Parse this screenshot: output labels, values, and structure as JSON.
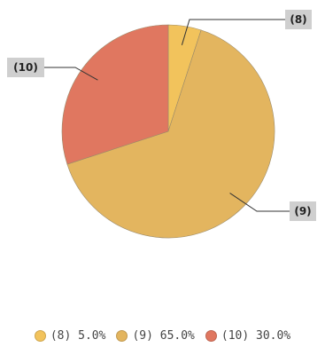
{
  "chart_data": {
    "type": "pie",
    "title": "",
    "slices": [
      {
        "label": "(8)",
        "value": 5.0,
        "legend": "(8) 5.0%",
        "color": "#f2c35c"
      },
      {
        "label": "(9)",
        "value": 65.0,
        "legend": "(9) 65.0%",
        "color": "#e3b55f"
      },
      {
        "label": "(10)",
        "value": 30.0,
        "legend": "(10) 30.0%",
        "color": "#e07760"
      }
    ],
    "start_angle_deg": 0,
    "direction": "clockwise",
    "legend_position": "bottom"
  }
}
